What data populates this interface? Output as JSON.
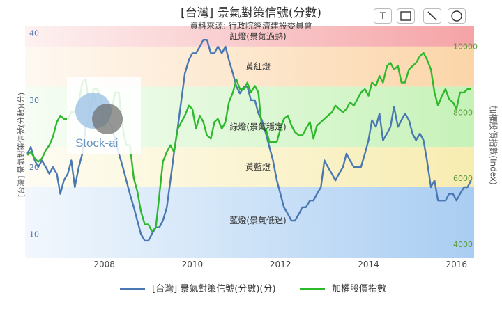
{
  "toolbar": {
    "buttons": [
      {
        "name": "text-tool-button",
        "glyph": "T"
      },
      {
        "name": "rectangle-tool-button",
        "glyph": "rect"
      },
      {
        "name": "line-tool-button",
        "glyph": "line"
      },
      {
        "name": "circle-tool-button",
        "glyph": "circle"
      }
    ]
  },
  "watermark": {
    "text": "Stock-ai"
  },
  "chart_data": {
    "type": "line",
    "title": "[台灣] 景氣對策信號(分數)",
    "subtitle": "資料來源: 行政院經濟建設委員會",
    "xlabel": "",
    "ylabel": "[台灣] 景氣對策信號(分數)(分)",
    "y2label": "加權股價指數(Index)",
    "xlim": [
      2006.2,
      2016.4
    ],
    "ylim": [
      6.5,
      41
    ],
    "y2lim": [
      3600,
      10600
    ],
    "x_ticks": [
      "2008",
      "2010",
      "2012",
      "2014",
      "2016"
    ],
    "y_ticks": [
      "10",
      "20",
      "30",
      "40"
    ],
    "y2_ticks": [
      "4000",
      "6000",
      "8000",
      "10000"
    ],
    "bands": [
      {
        "label": "紅燈(景氣過熱)",
        "from": 38,
        "to": 41,
        "color": "#f5a3a6"
      },
      {
        "label": "黃紅燈",
        "from": 32,
        "to": 38,
        "color": "#fbd5a8"
      },
      {
        "label": "綠燈(景氣穩定)",
        "from": 23,
        "to": 32,
        "color": "#c6f2b8"
      },
      {
        "label": "黃藍燈",
        "from": 17,
        "to": 23,
        "color": "#f7ecb0"
      },
      {
        "label": "藍燈(景氣低迷)",
        "from": 6.5,
        "to": 17,
        "color": "#a9cdf2"
      }
    ],
    "series": [
      {
        "name": "[台灣] 景氣對策信號(分數)(分)",
        "axis": "left",
        "color": "#4a78b2",
        "points": [
          [
            2006.25,
            22
          ],
          [
            2006.33,
            23
          ],
          [
            2006.42,
            21
          ],
          [
            2006.5,
            20
          ],
          [
            2006.58,
            21
          ],
          [
            2006.67,
            20
          ],
          [
            2006.75,
            19
          ],
          [
            2006.83,
            20
          ],
          [
            2006.92,
            19
          ],
          [
            2007.0,
            16
          ],
          [
            2007.08,
            18
          ],
          [
            2007.17,
            19
          ],
          [
            2007.25,
            21
          ],
          [
            2007.33,
            17
          ],
          [
            2007.42,
            20
          ],
          [
            2007.5,
            22
          ],
          [
            2007.58,
            26
          ],
          [
            2007.67,
            28
          ],
          [
            2007.75,
            31
          ],
          [
            2007.83,
            29
          ],
          [
            2007.92,
            29
          ],
          [
            2008.0,
            26
          ],
          [
            2008.08,
            27
          ],
          [
            2008.17,
            26
          ],
          [
            2008.25,
            24
          ],
          [
            2008.33,
            22
          ],
          [
            2008.42,
            20
          ],
          [
            2008.5,
            18
          ],
          [
            2008.58,
            16
          ],
          [
            2008.67,
            14
          ],
          [
            2008.75,
            12
          ],
          [
            2008.83,
            10
          ],
          [
            2008.92,
            9
          ],
          [
            2009.0,
            9
          ],
          [
            2009.08,
            10
          ],
          [
            2009.17,
            11
          ],
          [
            2009.25,
            11
          ],
          [
            2009.33,
            12
          ],
          [
            2009.42,
            14
          ],
          [
            2009.5,
            18
          ],
          [
            2009.58,
            22
          ],
          [
            2009.67,
            26
          ],
          [
            2009.75,
            30
          ],
          [
            2009.83,
            34
          ],
          [
            2009.92,
            36
          ],
          [
            2010.0,
            37
          ],
          [
            2010.08,
            37
          ],
          [
            2010.17,
            38
          ],
          [
            2010.25,
            39
          ],
          [
            2010.33,
            39
          ],
          [
            2010.42,
            37
          ],
          [
            2010.5,
            37
          ],
          [
            2010.58,
            38
          ],
          [
            2010.67,
            37
          ],
          [
            2010.75,
            38
          ],
          [
            2010.83,
            36
          ],
          [
            2010.92,
            34
          ],
          [
            2011.0,
            32
          ],
          [
            2011.08,
            31
          ],
          [
            2011.17,
            32
          ],
          [
            2011.25,
            32
          ],
          [
            2011.33,
            30
          ],
          [
            2011.42,
            30
          ],
          [
            2011.5,
            28
          ],
          [
            2011.58,
            27
          ],
          [
            2011.67,
            25
          ],
          [
            2011.75,
            23
          ],
          [
            2011.83,
            21
          ],
          [
            2011.92,
            18
          ],
          [
            2012.0,
            16
          ],
          [
            2012.08,
            14
          ],
          [
            2012.17,
            13
          ],
          [
            2012.25,
            12
          ],
          [
            2012.33,
            12
          ],
          [
            2012.42,
            13
          ],
          [
            2012.5,
            14
          ],
          [
            2012.58,
            14
          ],
          [
            2012.67,
            15
          ],
          [
            2012.75,
            15
          ],
          [
            2012.83,
            16
          ],
          [
            2012.92,
            17
          ],
          [
            2013.0,
            21
          ],
          [
            2013.08,
            20
          ],
          [
            2013.17,
            19
          ],
          [
            2013.25,
            18
          ],
          [
            2013.33,
            19
          ],
          [
            2013.42,
            20
          ],
          [
            2013.5,
            22
          ],
          [
            2013.58,
            21
          ],
          [
            2013.67,
            20
          ],
          [
            2013.75,
            20
          ],
          [
            2013.83,
            20
          ],
          [
            2013.92,
            22
          ],
          [
            2014.0,
            24
          ],
          [
            2014.08,
            27
          ],
          [
            2014.17,
            26
          ],
          [
            2014.25,
            28
          ],
          [
            2014.33,
            24
          ],
          [
            2014.42,
            25
          ],
          [
            2014.5,
            26
          ],
          [
            2014.58,
            29
          ],
          [
            2014.67,
            26
          ],
          [
            2014.75,
            27
          ],
          [
            2014.83,
            28
          ],
          [
            2014.92,
            27
          ],
          [
            2015.0,
            25
          ],
          [
            2015.08,
            24
          ],
          [
            2015.17,
            25
          ],
          [
            2015.25,
            24
          ],
          [
            2015.33,
            21
          ],
          [
            2015.42,
            17
          ],
          [
            2015.5,
            18
          ],
          [
            2015.58,
            15
          ],
          [
            2015.67,
            15
          ],
          [
            2015.75,
            15
          ],
          [
            2015.83,
            16
          ],
          [
            2015.92,
            16
          ],
          [
            2016.0,
            15
          ],
          [
            2016.08,
            16
          ],
          [
            2016.17,
            17
          ],
          [
            2016.25,
            17
          ],
          [
            2016.33,
            18
          ]
        ]
      },
      {
        "name": "加權股價指數",
        "axis": "right",
        "color": "#2eb82e",
        "points": [
          [
            2006.25,
            6700
          ],
          [
            2006.33,
            6800
          ],
          [
            2006.42,
            6600
          ],
          [
            2006.5,
            6500
          ],
          [
            2006.58,
            6600
          ],
          [
            2006.67,
            6850
          ],
          [
            2006.75,
            7000
          ],
          [
            2006.83,
            7250
          ],
          [
            2006.92,
            7700
          ],
          [
            2007.0,
            7900
          ],
          [
            2007.08,
            7800
          ],
          [
            2007.17,
            7800
          ],
          [
            2007.25,
            8000
          ],
          [
            2007.33,
            8000
          ],
          [
            2007.42,
            8300
          ],
          [
            2007.5,
            8900
          ],
          [
            2007.58,
            9000
          ],
          [
            2007.67,
            8000
          ],
          [
            2007.75,
            8700
          ],
          [
            2007.83,
            8700
          ],
          [
            2007.92,
            8500
          ],
          [
            2008.0,
            7500
          ],
          [
            2008.08,
            7800
          ],
          [
            2008.17,
            8100
          ],
          [
            2008.25,
            8600
          ],
          [
            2008.33,
            8600
          ],
          [
            2008.42,
            7500
          ],
          [
            2008.5,
            7000
          ],
          [
            2008.58,
            7000
          ],
          [
            2008.67,
            6000
          ],
          [
            2008.75,
            5600
          ],
          [
            2008.83,
            5000
          ],
          [
            2008.92,
            4600
          ],
          [
            2009.0,
            4600
          ],
          [
            2009.08,
            4400
          ],
          [
            2009.17,
            4500
          ],
          [
            2009.25,
            5500
          ],
          [
            2009.33,
            6500
          ],
          [
            2009.42,
            6800
          ],
          [
            2009.5,
            7000
          ],
          [
            2009.58,
            6800
          ],
          [
            2009.67,
            7500
          ],
          [
            2009.75,
            7700
          ],
          [
            2009.83,
            7900
          ],
          [
            2009.92,
            8200
          ],
          [
            2010.0,
            8100
          ],
          [
            2010.08,
            7500
          ],
          [
            2010.17,
            7900
          ],
          [
            2010.25,
            7700
          ],
          [
            2010.33,
            7300
          ],
          [
            2010.42,
            7200
          ],
          [
            2010.5,
            7700
          ],
          [
            2010.58,
            7800
          ],
          [
            2010.67,
            7500
          ],
          [
            2010.75,
            7700
          ],
          [
            2010.83,
            8300
          ],
          [
            2010.92,
            8600
          ],
          [
            2011.0,
            9000
          ],
          [
            2011.08,
            8700
          ],
          [
            2011.17,
            8700
          ],
          [
            2011.25,
            8900
          ],
          [
            2011.33,
            8600
          ],
          [
            2011.42,
            8800
          ],
          [
            2011.5,
            8600
          ],
          [
            2011.58,
            7500
          ],
          [
            2011.67,
            7500
          ],
          [
            2011.75,
            7100
          ],
          [
            2011.83,
            7100
          ],
          [
            2011.92,
            7100
          ],
          [
            2012.0,
            7500
          ],
          [
            2012.08,
            7800
          ],
          [
            2012.17,
            7900
          ],
          [
            2012.25,
            7600
          ],
          [
            2012.33,
            7400
          ],
          [
            2012.42,
            7300
          ],
          [
            2012.5,
            7300
          ],
          [
            2012.58,
            7500
          ],
          [
            2012.67,
            7700
          ],
          [
            2012.75,
            7200
          ],
          [
            2012.83,
            7600
          ],
          [
            2012.92,
            7700
          ],
          [
            2013.0,
            7800
          ],
          [
            2013.08,
            7900
          ],
          [
            2013.17,
            8000
          ],
          [
            2013.25,
            8200
          ],
          [
            2013.33,
            8100
          ],
          [
            2013.42,
            8000
          ],
          [
            2013.5,
            8100
          ],
          [
            2013.58,
            8300
          ],
          [
            2013.67,
            8200
          ],
          [
            2013.75,
            8400
          ],
          [
            2013.83,
            8600
          ],
          [
            2013.92,
            8700
          ],
          [
            2014.0,
            8500
          ],
          [
            2014.08,
            8900
          ],
          [
            2014.17,
            8800
          ],
          [
            2014.25,
            9100
          ],
          [
            2014.33,
            8900
          ],
          [
            2014.42,
            9400
          ],
          [
            2014.5,
            9500
          ],
          [
            2014.58,
            9300
          ],
          [
            2014.67,
            9400
          ],
          [
            2014.75,
            8900
          ],
          [
            2014.83,
            8900
          ],
          [
            2014.92,
            9300
          ],
          [
            2015.0,
            9400
          ],
          [
            2015.08,
            9500
          ],
          [
            2015.17,
            9700
          ],
          [
            2015.25,
            9800
          ],
          [
            2015.33,
            9600
          ],
          [
            2015.42,
            9300
          ],
          [
            2015.5,
            8600
          ],
          [
            2015.58,
            8200
          ],
          [
            2015.67,
            8500
          ],
          [
            2015.75,
            8700
          ],
          [
            2015.83,
            8400
          ],
          [
            2015.92,
            8300
          ],
          [
            2016.0,
            8100
          ],
          [
            2016.08,
            8600
          ],
          [
            2016.17,
            8600
          ],
          [
            2016.25,
            8700
          ],
          [
            2016.33,
            8700
          ]
        ]
      }
    ]
  }
}
